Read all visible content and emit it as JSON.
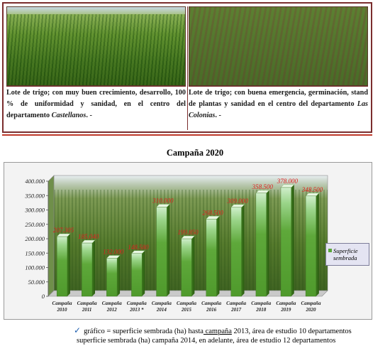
{
  "photos": {
    "left_caption_plain": "Lote de trigo; con muy buen crecimiento, desarrollo, 100 % de uniformidad y sanidad, en el centro del departamento ",
    "left_caption_place": "Castellanos",
    "left_caption_tail": ". -",
    "right_caption_plain": "Lote de trigo; con buena emergencia, germinación, stand de plantas y sanidad en el centro del departamento ",
    "right_caption_place": "Las Colonias",
    "right_caption_tail": ". -"
  },
  "chart_data": {
    "type": "bar",
    "title": "Campaña 2020",
    "categories": [
      "Campaña 2010",
      "Campaña 2011",
      "Campaña 2012",
      "Campaña 2013 *",
      "Campaña 2014",
      "Campaña 2015",
      "Campaña 2016",
      "Campaña 2017",
      "Campaña 2018",
      "Campaña 2019",
      "Campaña 2020"
    ],
    "series": [
      {
        "name": "Superficie sembrada",
        "values": [
          207305,
          185040,
          132000,
          148580,
          310000,
          199850,
          268500,
          309000,
          358500,
          378000,
          348500
        ],
        "labels": [
          "207.305",
          "185.040",
          "132.000",
          "148.580",
          "310.000",
          "199.850",
          "268.500",
          "309.000",
          "358.500",
          "378.000",
          "348.500"
        ]
      }
    ],
    "ylim": [
      0,
      400000
    ],
    "yticks": [
      "0",
      "50.000",
      "100.000",
      "150.000",
      "200.000",
      "250.000",
      "300.000",
      "350.000",
      "400.000"
    ],
    "grid": false,
    "legend_position": "right",
    "colors": {
      "bar": "#4f9a2c",
      "bar_top": "#cfeecb",
      "data_label": "#e02020",
      "frame": "#9a9a9a"
    }
  },
  "legend": {
    "line1": "Superficie",
    "line2": "sembrada"
  },
  "footnote": {
    "check": "✓",
    "line1_a": "gráfico",
    "line1_b": " = superficie sembrada (ha) hasta",
    "line1_c": " campaña",
    "line1_d": " 2013, área de estudio 10 departamentos",
    "line2": "superficie sembrada (ha) campaña 2014, en adelante, área de estudio 12 departamentos"
  }
}
